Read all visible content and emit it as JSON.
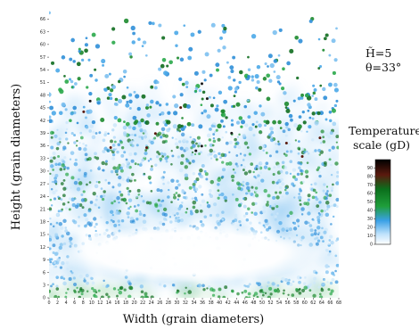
{
  "chart_data": {
    "type": "heatmap",
    "xlabel": "Width (grain diameters)",
    "ylabel": "Height (grain diameters)",
    "xlim": [
      0,
      68
    ],
    "ylim": [
      0,
      68
    ],
    "xticks": [
      "0",
      "2",
      "4",
      "6",
      "8",
      "10",
      "12",
      "14",
      "16",
      "18",
      "20",
      "22",
      "24",
      "26",
      "28",
      "30",
      "32",
      "34",
      "36",
      "38",
      "40",
      "42",
      "44",
      "46",
      "48",
      "50",
      "52",
      "54",
      "56",
      "58",
      "60",
      "62",
      "64",
      "66",
      "68"
    ],
    "yticks": [
      "0",
      "3",
      "6",
      "9",
      "12",
      "15",
      "18",
      "21",
      "24",
      "27",
      "30",
      "33",
      "36",
      "39",
      "42",
      "45",
      "48",
      "51",
      "54",
      "57",
      "60",
      "63",
      "66"
    ],
    "annotation_lines": [
      "H̃=5",
      "θ=33°"
    ],
    "colorbar": {
      "title_lines": [
        "Temperature",
        "scale (gD)"
      ],
      "ticks": [
        "0",
        "10",
        "20",
        "30",
        "40",
        "50",
        "60",
        "70",
        "80",
        "90"
      ],
      "range": [
        0,
        100
      ],
      "colors": [
        "#ffffff",
        "#9fd4f5",
        "#3aa0e6",
        "#1f9e3a",
        "#0b6f1c",
        "#5a1a0e",
        "#000000"
      ]
    },
    "density_profile": {
      "note_free": true,
      "dense_bed_top": 42,
      "sparse_top": 68,
      "cold_core": {
        "x": [
          4,
          65
        ],
        "y": [
          3,
          14
        ]
      }
    }
  }
}
